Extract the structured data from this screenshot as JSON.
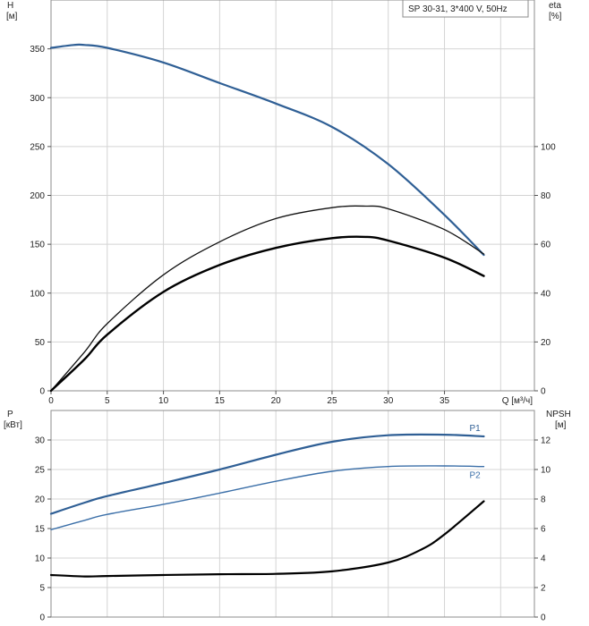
{
  "chart_data": [
    {
      "type": "line",
      "legend_box": "SP 30-31, 3*400 V, 50Hz",
      "y_left": {
        "label": "H",
        "unit": "[м]",
        "ticks": [
          0,
          50,
          100,
          150,
          200,
          250,
          300,
          350
        ],
        "range": [
          0,
          400
        ]
      },
      "y_right": {
        "label": "eta",
        "unit": "[%]",
        "ticks": [
          0,
          20,
          40,
          60,
          80,
          100
        ],
        "range": [
          0,
          160
        ]
      },
      "x": {
        "label": "Q [м³/ч]",
        "ticks": [
          0,
          5,
          10,
          15,
          20,
          25,
          30,
          35
        ],
        "range": [
          0,
          43
        ]
      },
      "grid": true,
      "series": [
        {
          "id": "head",
          "axis": "left",
          "color": "#2f5f95",
          "points": [
            [
              0,
              351
            ],
            [
              2,
              354
            ],
            [
              3,
              354
            ],
            [
              5,
              351
            ],
            [
              10,
              336
            ],
            [
              15,
              315
            ],
            [
              20,
              294
            ],
            [
              25,
              270
            ],
            [
              30,
              232
            ],
            [
              35,
              180
            ],
            [
              38.5,
              139
            ]
          ]
        },
        {
          "id": "eta-pump",
          "axis": "right",
          "color": "#111111",
          "points": [
            [
              0,
              0
            ],
            [
              3,
              16
            ],
            [
              5,
              27.5
            ],
            [
              10,
              47.5
            ],
            [
              15,
              61
            ],
            [
              20,
              70.5
            ],
            [
              25,
              75
            ],
            [
              28,
              75.6
            ],
            [
              30,
              74.5
            ],
            [
              35,
              66
            ],
            [
              38.5,
              56
            ]
          ]
        },
        {
          "id": "eta-total",
          "axis": "right",
          "color": "#000000",
          "points": [
            [
              0,
              0
            ],
            [
              3,
              13
            ],
            [
              5,
              23
            ],
            [
              10,
              40.5
            ],
            [
              15,
              51.5
            ],
            [
              20,
              58.5
            ],
            [
              25,
              62.5
            ],
            [
              28,
              63
            ],
            [
              30,
              61.5
            ],
            [
              35,
              54.5
            ],
            [
              38.5,
              47
            ]
          ]
        }
      ]
    },
    {
      "type": "line",
      "y_left": {
        "label": "P",
        "unit": "[кВт]",
        "ticks": [
          0,
          5,
          10,
          15,
          20,
          25,
          30
        ],
        "range": [
          0,
          35
        ]
      },
      "y_right": {
        "label": "NPSH",
        "unit": "[м]",
        "ticks": [
          0,
          2,
          4,
          6,
          8,
          10,
          12
        ],
        "range": [
          0,
          14
        ]
      },
      "x": {
        "range": [
          0,
          43
        ]
      },
      "grid": true,
      "series": [
        {
          "id": "p1",
          "name": "P1",
          "axis": "left",
          "color": "#2f5f95",
          "points": [
            [
              0,
              17.5
            ],
            [
              3,
              19.4
            ],
            [
              5,
              20.5
            ],
            [
              10,
              22.7
            ],
            [
              15,
              25
            ],
            [
              20,
              27.5
            ],
            [
              25,
              29.7
            ],
            [
              30,
              30.8
            ],
            [
              35,
              30.9
            ],
            [
              38.5,
              30.6
            ]
          ]
        },
        {
          "id": "p2",
          "name": "P2",
          "axis": "left",
          "color": "#3b6fa8",
          "points": [
            [
              0,
              14.8
            ],
            [
              3,
              16.4
            ],
            [
              5,
              17.4
            ],
            [
              10,
              19.1
            ],
            [
              15,
              21
            ],
            [
              20,
              23
            ],
            [
              25,
              24.7
            ],
            [
              30,
              25.5
            ],
            [
              35,
              25.6
            ],
            [
              38.5,
              25.5
            ]
          ]
        },
        {
          "id": "npsh",
          "axis": "right",
          "color": "#000000",
          "points": [
            [
              0,
              2.85
            ],
            [
              3,
              2.75
            ],
            [
              5,
              2.78
            ],
            [
              10,
              2.85
            ],
            [
              15,
              2.9
            ],
            [
              20,
              2.93
            ],
            [
              25,
              3.1
            ],
            [
              30,
              3.7
            ],
            [
              33,
              4.6
            ],
            [
              35,
              5.6
            ],
            [
              38.5,
              7.85
            ]
          ]
        }
      ]
    }
  ]
}
